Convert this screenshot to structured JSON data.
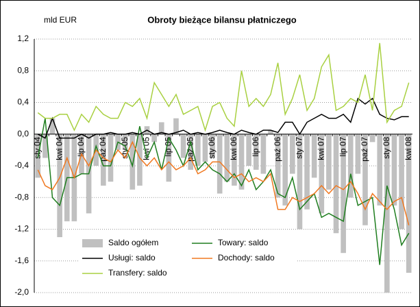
{
  "chart_data": {
    "type": "bar",
    "title": "Obroty bieżące bilansu płatniczego",
    "y_axis_label": "mld EUR",
    "categories": [
      "sty 04",
      null,
      null,
      "kwi 04",
      null,
      null,
      "lip 04",
      null,
      null,
      "paź 04",
      null,
      null,
      "sty 05",
      null,
      null,
      "kwi 05",
      null,
      null,
      "lip 05",
      null,
      null,
      "paź 05",
      null,
      null,
      "sty 06",
      null,
      null,
      "kwi 06",
      null,
      null,
      "lip 06",
      null,
      null,
      "paź 06",
      null,
      null,
      "sty 07",
      null,
      null,
      "kwi 07",
      null,
      null,
      "lip 07",
      null,
      null,
      "paź 07",
      null,
      null,
      "sty 08",
      null,
      null,
      "kwi 08"
    ],
    "series": [
      {
        "name": "Saldo ogółem",
        "type": "bar",
        "color": "#c0c0c0",
        "values": [
          -0.55,
          -0.3,
          0.2,
          -1.3,
          -1.1,
          -1.1,
          -0.5,
          -1.0,
          -0.4,
          -0.65,
          -0.6,
          -0.2,
          -0.2,
          -0.7,
          -0.65,
          0.1,
          -0.1,
          0.15,
          -0.6,
          0.2,
          -0.3,
          -0.45,
          -0.4,
          -0.35,
          -0.3,
          -0.75,
          -0.6,
          -0.65,
          -0.7,
          -0.4,
          -0.45,
          -0.5,
          0.05,
          -0.8,
          -0.9,
          -0.5,
          -1.2,
          -0.95,
          -0.55,
          -1.0,
          -0.7,
          -1.25,
          -1.5,
          -0.8,
          -0.5,
          -1.15,
          -0.1,
          -0.9,
          -2.0,
          -0.9,
          -1.2,
          -1.75
        ]
      },
      {
        "name": "Towary: saldo",
        "type": "line",
        "color": "#1e7d1e",
        "values": [
          -0.3,
          0.2,
          -0.8,
          -0.9,
          -0.55,
          -0.55,
          -0.5,
          -0.5,
          -0.15,
          -0.4,
          -0.4,
          -0.1,
          -0.15,
          -0.4,
          0.1,
          -0.3,
          -0.1,
          -0.45,
          -0.05,
          -0.2,
          -0.4,
          -0.1,
          -0.45,
          -0.35,
          -0.45,
          -0.5,
          -0.6,
          -0.5,
          -0.65,
          -0.45,
          -0.7,
          -0.6,
          -0.45,
          -0.75,
          -0.8,
          -0.55,
          -0.95,
          -0.85,
          -0.75,
          -1.05,
          -1.0,
          -1.05,
          -1.1,
          -0.5,
          -0.9,
          -0.85,
          -0.8,
          -1.65,
          -0.65,
          -0.95,
          -1.4,
          -1.25
        ]
      },
      {
        "name": "Usługi: saldo",
        "type": "line",
        "color": "#000000",
        "values": [
          0.0,
          -0.05,
          0.2,
          -0.05,
          -0.05,
          -0.05,
          0.0,
          -0.05,
          0.0,
          0.0,
          0.02,
          0.0,
          0.0,
          0.02,
          0.0,
          0.05,
          0.0,
          0.02,
          0.0,
          0.02,
          0.05,
          0.0,
          0.02,
          0.0,
          0.02,
          0.05,
          0.02,
          0.0,
          0.05,
          0.02,
          0.0,
          0.05,
          0.05,
          0.02,
          0.15,
          0.15,
          0.0,
          0.15,
          0.2,
          0.25,
          0.2,
          0.2,
          0.25,
          0.15,
          0.45,
          0.38,
          0.45,
          0.25,
          0.2,
          0.18,
          0.22,
          0.22
        ]
      },
      {
        "name": "Dochody: saldo",
        "type": "line",
        "color": "#f07820",
        "values": [
          -0.45,
          -0.65,
          -0.7,
          -0.55,
          -0.3,
          -0.55,
          -0.25,
          -0.4,
          -0.2,
          -0.3,
          -0.35,
          -0.2,
          -0.3,
          -0.1,
          -0.3,
          -0.4,
          -0.3,
          -0.45,
          -0.35,
          -0.45,
          -0.4,
          -0.3,
          -0.5,
          -0.45,
          -0.35,
          -0.35,
          -0.45,
          -0.55,
          -0.5,
          -0.6,
          -0.55,
          -0.6,
          -0.5,
          -0.95,
          -0.95,
          -0.8,
          -0.85,
          -0.8,
          -0.75,
          -0.65,
          -0.75,
          -0.65,
          -0.7,
          -0.6,
          -0.75,
          -0.95,
          -0.75,
          -0.85,
          -0.95,
          -0.85,
          -0.8,
          -1.15
        ]
      },
      {
        "name": "Transfery: saldo",
        "type": "line",
        "color": "#a8d040",
        "values": [
          0.27,
          0.2,
          0.2,
          0.25,
          0.25,
          0.05,
          0.25,
          0.15,
          0.35,
          0.25,
          0.2,
          0.2,
          0.4,
          0.35,
          0.45,
          0.2,
          0.65,
          0.5,
          0.35,
          0.5,
          0.25,
          0.3,
          0.35,
          0.05,
          0.35,
          0.4,
          0.2,
          0.1,
          0.8,
          0.35,
          0.45,
          0.35,
          0.5,
          0.9,
          0.25,
          0.45,
          0.75,
          0.3,
          0.45,
          0.85,
          1.0,
          0.3,
          0.35,
          0.45,
          0.4,
          0.75,
          0.3,
          1.15,
          0.15,
          0.3,
          0.35,
          0.65
        ]
      }
    ],
    "ylim": [
      -2.0,
      1.2
    ],
    "yticks": [
      {
        "value": -2.0,
        "label": "-2,0"
      },
      {
        "value": -1.6,
        "label": "-1,6"
      },
      {
        "value": -1.2,
        "label": "-1,2"
      },
      {
        "value": -0.8,
        "label": "-0,8"
      },
      {
        "value": -0.4,
        "label": "-0,4"
      },
      {
        "value": 0.0,
        "label": "0,0"
      },
      {
        "value": 0.4,
        "label": "0,4"
      },
      {
        "value": 0.8,
        "label": "0,8"
      },
      {
        "value": 1.2,
        "label": "1,2"
      }
    ],
    "grid": true,
    "legend": "lower left"
  }
}
